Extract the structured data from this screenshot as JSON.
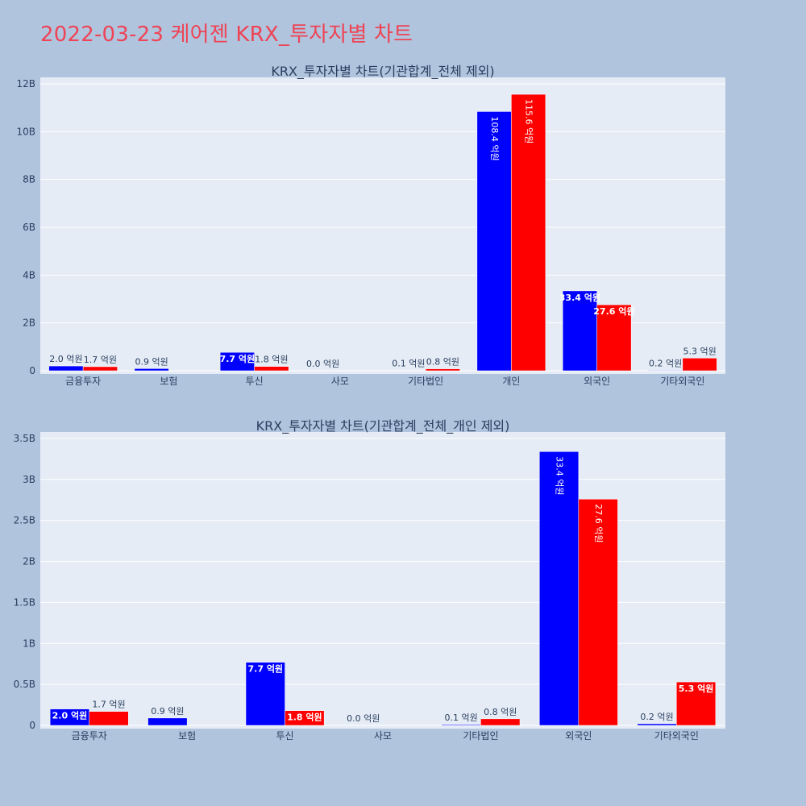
{
  "title": "2022-03-23 케어젠 KRX_투자자별 차트",
  "colors": {
    "background": "#b0c4de",
    "plot_bg": "#e5ecf6",
    "title": "#ee4455",
    "series1": "#0000ff",
    "series2": "#ff0000"
  },
  "chart_data": [
    {
      "type": "bar",
      "title": "KRX_투자자별 차트(기관합계_전체 제외)",
      "categories": [
        "금융투자",
        "보험",
        "투신",
        "사모",
        "기타법인",
        "개인",
        "외국인",
        "기타외국인"
      ],
      "series": [
        {
          "color": "#0000ff",
          "values": [
            200000000,
            90000000,
            770000000,
            0,
            10000000,
            10840000000,
            3340000000,
            20000000
          ],
          "labels": [
            "2.0 억원",
            "0.9 억원",
            "7.7 억원",
            "0.0 억원",
            "0.1 억원",
            "108.4 억원",
            "33.4 억원",
            "0.2 억원"
          ]
        },
        {
          "color": "#ff0000",
          "values": [
            170000000,
            0,
            180000000,
            0,
            80000000,
            11560000000,
            2760000000,
            530000000
          ],
          "labels": [
            "1.7 억원",
            "",
            "1.8 억원",
            "",
            "0.8 억원",
            "115.6 억원",
            "27.6 억원",
            "5.3 억원"
          ]
        }
      ],
      "yticks": [
        0,
        2000000000,
        4000000000,
        6000000000,
        8000000000,
        10000000000,
        12000000000
      ],
      "ytick_labels": [
        "0",
        "2B",
        "4B",
        "6B",
        "8B",
        "10B",
        "12B"
      ],
      "ylim": [
        0,
        12000000000
      ],
      "grid": true
    },
    {
      "type": "bar",
      "title": "KRX_투자자별 차트(기관합계_전체_개인 제외)",
      "categories": [
        "금융투자",
        "보험",
        "투신",
        "사모",
        "기타법인",
        "외국인",
        "기타외국인"
      ],
      "series": [
        {
          "color": "#0000ff",
          "values": [
            200000000,
            90000000,
            770000000,
            0,
            10000000,
            3340000000,
            20000000
          ],
          "labels": [
            "2.0 억원",
            "0.9 억원",
            "7.7 억원",
            "0.0 억원",
            "0.1 억원",
            "33.4 억원",
            "0.2 억원"
          ]
        },
        {
          "color": "#ff0000",
          "values": [
            170000000,
            0,
            180000000,
            0,
            80000000,
            2760000000,
            530000000
          ],
          "labels": [
            "1.7 억원",
            "",
            "1.8 억원",
            "",
            "0.8 억원",
            "27.6 억원",
            "5.3 억원"
          ]
        }
      ],
      "yticks": [
        0,
        500000000,
        1000000000,
        1500000000,
        2000000000,
        2500000000,
        3000000000,
        3500000000
      ],
      "ytick_labels": [
        "0",
        "0.5B",
        "1B",
        "1.5B",
        "2B",
        "2.5B",
        "3B",
        "3.5B"
      ],
      "ylim": [
        0,
        3500000000
      ],
      "grid": true
    }
  ]
}
